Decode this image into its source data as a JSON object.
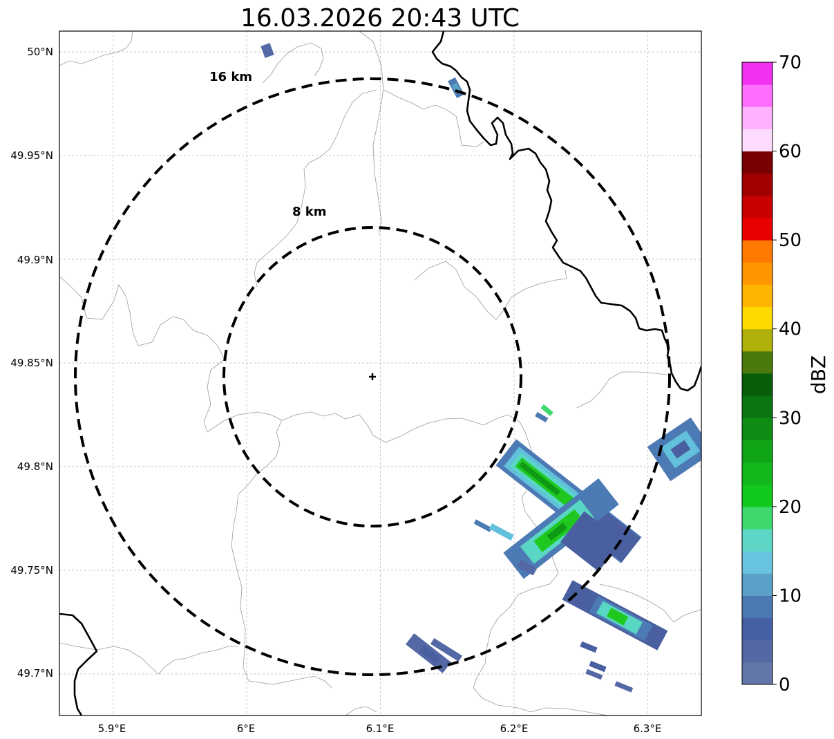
{
  "title": "16.03.2026 20:43 UTC",
  "map": {
    "lon_range": [
      5.86,
      6.34
    ],
    "lat_range": [
      49.68,
      50.01
    ],
    "lon_ticks": [
      5.9,
      6.0,
      6.1,
      6.2,
      6.3
    ],
    "lon_tick_labels": [
      "5.9°E",
      "6°E",
      "6.1°E",
      "6.2°E",
      "6.3°E"
    ],
    "lat_ticks": [
      50.0,
      49.95,
      49.9,
      49.85,
      49.8,
      49.75,
      49.7
    ],
    "lat_tick_labels": [
      "50°N",
      "49.95°N",
      "49.9°N",
      "49.85°N",
      "49.8°N",
      "49.75°N",
      "49.7°N"
    ],
    "radar_site": {
      "lon": 6.095,
      "lat": 49.843
    },
    "rings": [
      {
        "radius_km": 8,
        "label": "8 km"
      },
      {
        "radius_km": 16,
        "label": "16 km"
      }
    ]
  },
  "colorbar": {
    "unit": "dBZ",
    "min": 0,
    "max": 70,
    "tick_values": [
      0,
      10,
      20,
      30,
      40,
      50,
      60,
      70
    ],
    "tick_labels": [
      "0",
      "10",
      "20",
      "30",
      "40",
      "50",
      "60",
      "70"
    ],
    "colors": [
      "#6276a8",
      "#5368a4",
      "#4461a6",
      "#4c79b1",
      "#5aa1c7",
      "#68c3de",
      "#5dd6c6",
      "#3dd86e",
      "#12c91e",
      "#12b81c",
      "#10a517",
      "#0e8c13",
      "#0b7512",
      "#065e0a",
      "#4a7a0c",
      "#b0b00a",
      "#ffd800",
      "#ffb400",
      "#ff9600",
      "#ff7800",
      "#e80000",
      "#c80000",
      "#a00000",
      "#780000",
      "#ffdcff",
      "#ffb0ff",
      "#ff6eff",
      "#f032f0"
    ]
  },
  "echo_color_map": {
    "a": "#4a5fa0",
    "b": "#4c7ab4",
    "c": "#62c0dc",
    "d": "#5ad6c4",
    "e": "#1ec81e",
    "f": "#0e9a14"
  }
}
